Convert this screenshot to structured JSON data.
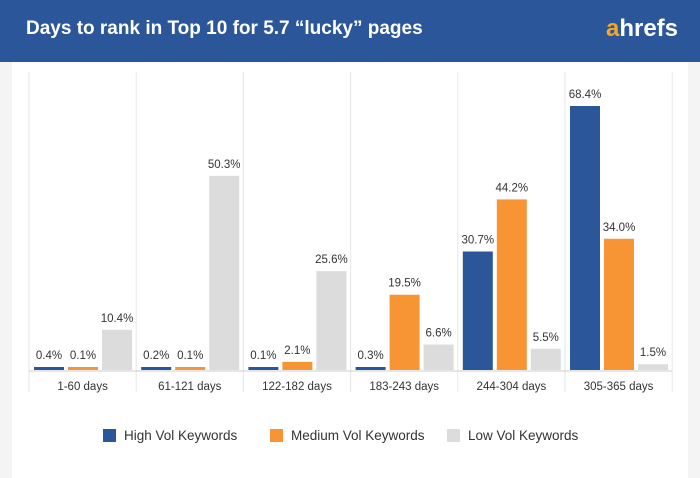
{
  "header": {
    "title": "Days to rank in Top 10 for 5.7 “lucky” pages",
    "brand_first": "a",
    "brand_rest": "hrefs"
  },
  "colors": {
    "header_bg": "#2b579a",
    "high": "#2b579a",
    "medium": "#f79433",
    "low": "#dcdcdc",
    "brand_accent": "#f5a623"
  },
  "chart_data": {
    "type": "bar",
    "categories": [
      "1-60 days",
      "61-121 days",
      "122-182 days",
      "183-243 days",
      "244-304 days",
      "305-365 days"
    ],
    "series": [
      {
        "name": "High Vol Keywords",
        "values": [
          0.4,
          0.2,
          0.1,
          0.3,
          30.7,
          68.4
        ],
        "labels": [
          "0.4%",
          "0.2%",
          "0.1%",
          "0.3%",
          "30.7%",
          "68.4%"
        ]
      },
      {
        "name": "Medium Vol Keywords",
        "values": [
          0.1,
          0.1,
          2.1,
          19.5,
          44.2,
          34.0
        ],
        "labels": [
          "0.1%",
          "0.1%",
          "2.1%",
          "19.5%",
          "44.2%",
          "34.0%"
        ]
      },
      {
        "name": "Low Vol Keywords",
        "values": [
          10.4,
          50.3,
          25.6,
          6.6,
          5.5,
          1.5
        ],
        "labels": [
          "10.4%",
          "50.3%",
          "25.6%",
          "6.6%",
          "5.5%",
          "1.5%"
        ]
      }
    ],
    "ylim": [
      0,
      68.4
    ],
    "grid": false,
    "legend_position": "bottom"
  }
}
